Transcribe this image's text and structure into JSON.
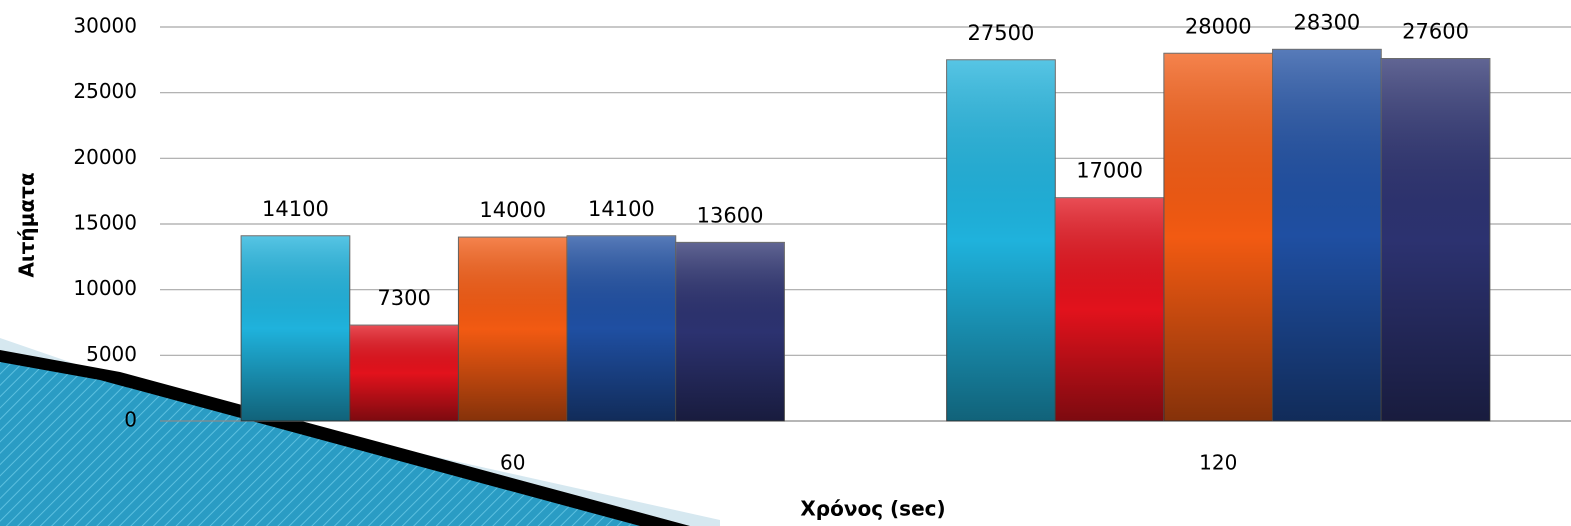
{
  "chart_data": {
    "type": "bar",
    "x_label": "Χρόνος (sec)",
    "y_label": "Αιτήματα",
    "categories": [
      "60",
      "120"
    ],
    "series": [
      {
        "color": "#1fb2dc",
        "values": [
          14100,
          27500
        ]
      },
      {
        "color": "#e2121c",
        "values": [
          7300,
          17000
        ]
      },
      {
        "color": "#f25a12",
        "values": [
          14000,
          28000
        ]
      },
      {
        "color": "#1f4fa2",
        "values": [
          14100,
          28300
        ]
      },
      {
        "color": "#2c3270",
        "values": [
          13600,
          27600
        ]
      }
    ],
    "ylim": [
      0,
      30000
    ],
    "yticks": [
      0,
      5000,
      10000,
      15000,
      20000,
      25000,
      30000
    ],
    "grid": true
  }
}
